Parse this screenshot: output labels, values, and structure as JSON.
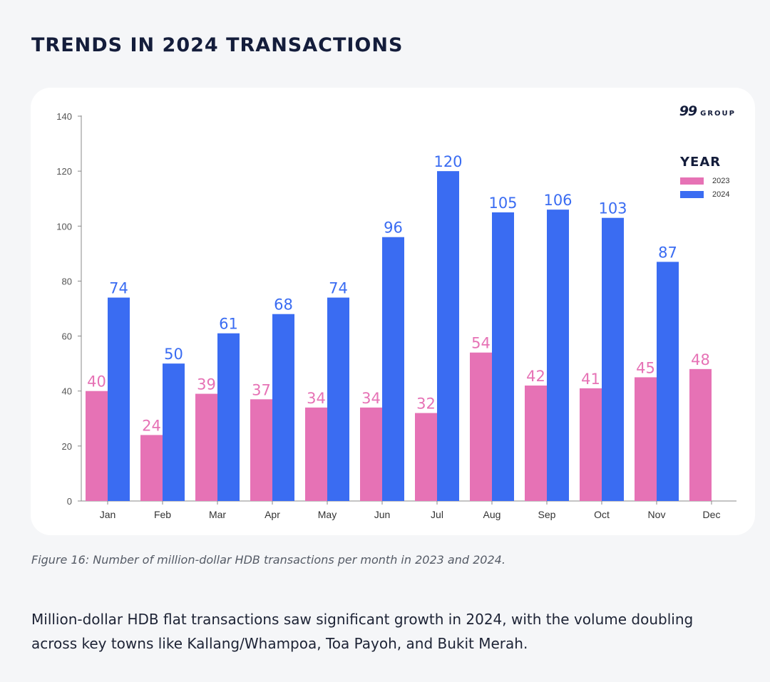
{
  "heading": "TRENDS IN 2024 TRANSACTIONS",
  "brand": {
    "number": "99",
    "word": "GROUP"
  },
  "legend": {
    "title": "YEAR"
  },
  "caption": "Figure 16: Number of million-dollar HDB transactions per month in 2023 and 2024.",
  "body_text": "Million-dollar HDB flat transactions saw significant growth in 2024, with the volume doubling across key towns like Kallang/Whampoa, Toa Payoh, and Bukit Merah.",
  "colors": {
    "series_2023": "#e672b5",
    "series_2024": "#3a6cf2"
  },
  "chart_data": {
    "type": "bar",
    "categories": [
      "Jan",
      "Feb",
      "Mar",
      "Apr",
      "May",
      "Jun",
      "Jul",
      "Aug",
      "Sep",
      "Oct",
      "Nov",
      "Dec"
    ],
    "series": [
      {
        "name": "2023",
        "values": [
          40,
          24,
          39,
          37,
          34,
          34,
          32,
          54,
          42,
          41,
          45,
          48
        ]
      },
      {
        "name": "2024",
        "values": [
          74,
          50,
          61,
          68,
          74,
          96,
          120,
          105,
          106,
          103,
          87,
          null
        ]
      }
    ],
    "yticks": [
      0,
      20,
      40,
      60,
      80,
      100,
      120,
      140
    ],
    "ylim": [
      0,
      140
    ],
    "grid": false,
    "legend_position": "top-right",
    "data_labels": true
  }
}
